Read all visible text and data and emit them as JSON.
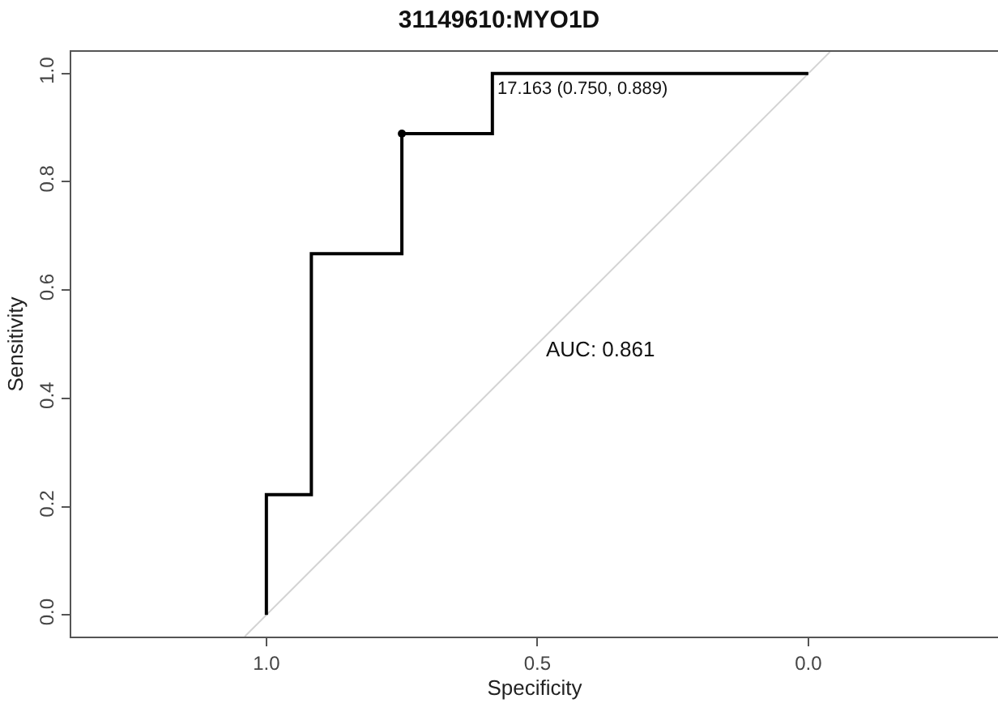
{
  "chart_data": {
    "type": "line",
    "title": "31149610:MYO1D",
    "xlabel": "Specificity",
    "ylabel": "Sensitivity",
    "xlim": [
      1.36,
      -0.35
    ],
    "ylim": [
      -0.04,
      1.04
    ],
    "xticks": [
      {
        "value": 1.0,
        "label": "1.0"
      },
      0.5,
      {
        "value": 0.0,
        "label": "0.0"
      }
    ],
    "yticks": [
      {
        "value": 0.0,
        "label": "0.0"
      },
      0.2,
      0.4,
      0.6,
      0.8,
      {
        "value": 1.0,
        "label": "1.0"
      }
    ],
    "series": [
      {
        "color": "#d3d3d3",
        "x": [
          1.04,
          -0.04
        ],
        "values": [
          -0.04,
          1.04
        ]
      },
      {
        "type": "step",
        "color": "#000000",
        "x": [
          1.0,
          1.0,
          0.917,
          0.917,
          0.75,
          0.75,
          0.583,
          0.583,
          0.0
        ],
        "values": [
          0.0,
          0.222,
          0.222,
          0.667,
          0.667,
          0.889,
          0.889,
          1.0,
          1.0
        ]
      },
      {
        "type": "scatter",
        "color": "#000000",
        "marker": "circle",
        "x": [
          0.75
        ],
        "values": [
          0.889
        ]
      }
    ],
    "annotations": [
      {
        "text": "17.163 (0.750, 0.889)",
        "x": 0.58,
        "y": 0.97
      },
      {
        "text": "AUC: 0.861",
        "x": 0.49,
        "y": 0.49
      }
    ]
  }
}
